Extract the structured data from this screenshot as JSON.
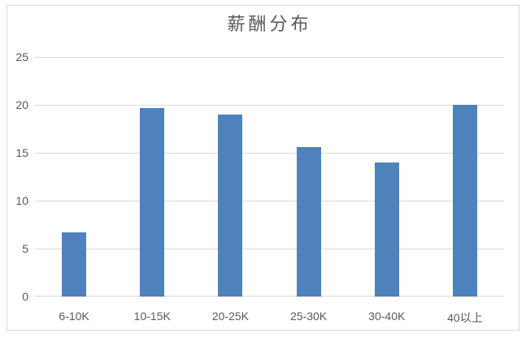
{
  "chart_data": {
    "type": "bar",
    "title": "薪酬分布",
    "categories": [
      "6-10K",
      "10-15K",
      "20-25K",
      "25-30K",
      "30-40K",
      "40以上"
    ],
    "values": [
      6.7,
      19.7,
      19.0,
      15.6,
      14.0,
      20.0
    ],
    "xlabel": "",
    "ylabel": "",
    "ylim": [
      0,
      25
    ],
    "yticks": [
      0,
      5,
      10,
      15,
      20,
      25
    ],
    "grid": "horizontal",
    "legend": "none",
    "colors": {
      "bar": "#4F81BD",
      "gridline": "#D9D9D9",
      "tick_label": "#595959",
      "title": "#595959",
      "frame_border": "#D9D9D9",
      "background": "#FFFFFF"
    }
  }
}
